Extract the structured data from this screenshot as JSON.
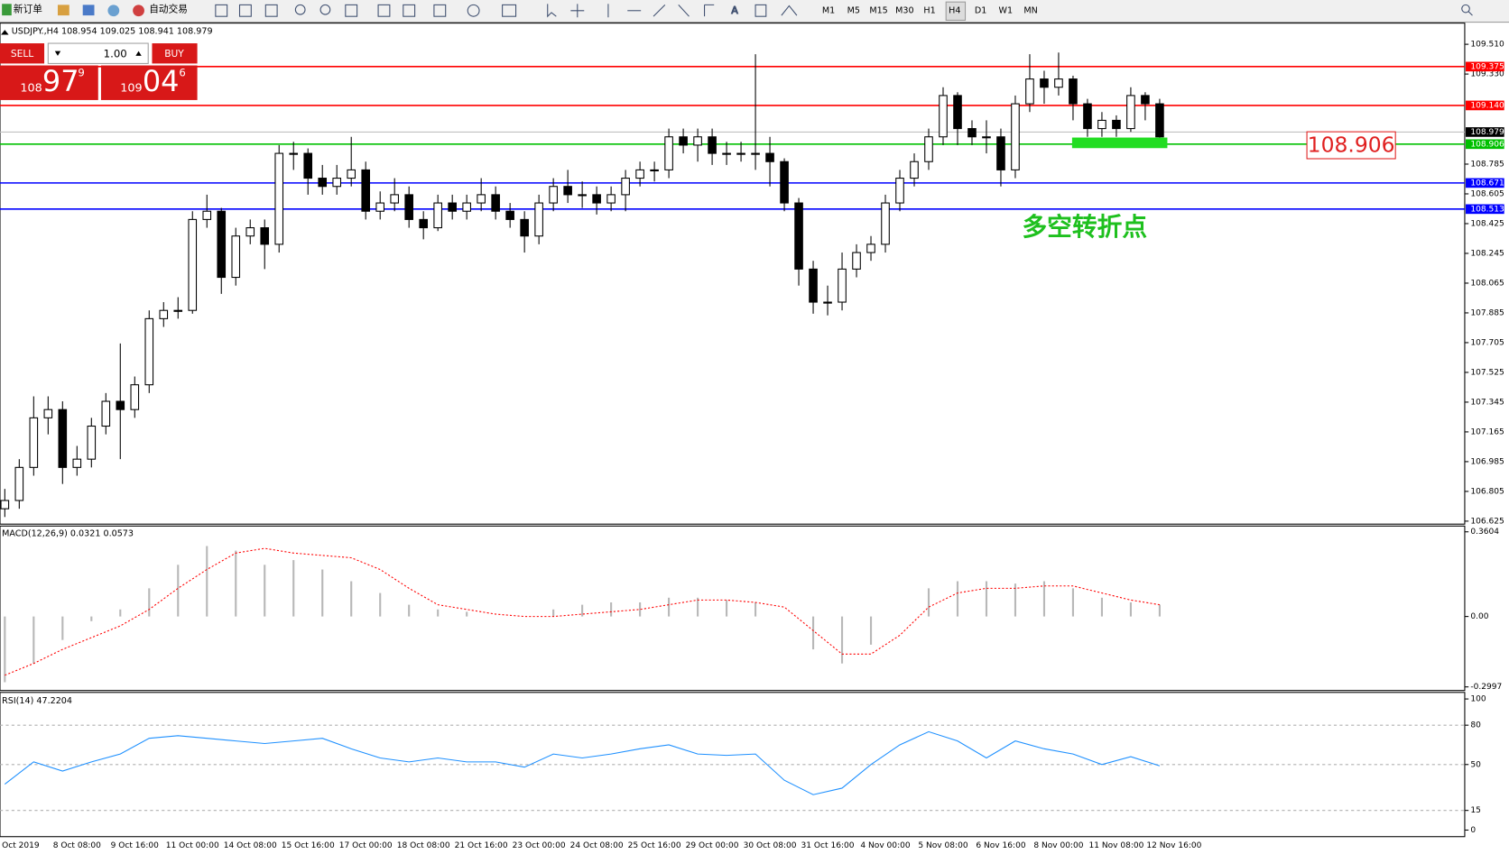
{
  "toolbar": {
    "items": [
      "新订单",
      "自动交易"
    ],
    "timeframes": [
      "M1",
      "M5",
      "M15",
      "M30",
      "H1",
      "H4",
      "D1",
      "W1",
      "MN"
    ],
    "active": "H4"
  },
  "trade_panel": {
    "sell": "SELL",
    "buy": "BUY",
    "lot": "1.00",
    "bid": [
      "108",
      "97",
      "9"
    ],
    "ask": [
      "109",
      "04",
      "6"
    ]
  },
  "chart": {
    "type": "candlestick",
    "info": "USDJPY.,H4  108.954 109.025 108.941 108.979",
    "x_labels": [
      "Oct 2019",
      "8 Oct 08:00",
      "9 Oct 16:00",
      "11 Oct 00:00",
      "14 Oct 08:00",
      "15 Oct 16:00",
      "17 Oct 00:00",
      "18 Oct 08:00",
      "21 Oct 16:00",
      "23 Oct 00:00",
      "24 Oct 08:00",
      "25 Oct 16:00",
      "29 Oct 00:00",
      "30 Oct 08:00",
      "31 Oct 16:00",
      "4 Nov 00:00",
      "5 Nov 08:00",
      "6 Nov 16:00",
      "8 Nov 00:00",
      "11 Nov 08:00",
      "12 Nov 16:00"
    ],
    "ylim": [
      106.607,
      109.638
    ],
    "yticks": [
      {
        "value": 109.51,
        "label": "109.510"
      },
      {
        "value": 109.33,
        "label": "109.330"
      },
      108.785,
      108.605,
      108.425,
      108.245,
      108.065,
      107.885,
      107.705,
      107.525,
      107.345,
      107.165,
      106.985,
      106.805,
      106.625
    ],
    "open": [
      106.7,
      106.75,
      106.95,
      107.25,
      107.3,
      106.95,
      107.0,
      107.2,
      107.35,
      107.3,
      107.45,
      107.85,
      107.9,
      107.9,
      108.45,
      108.5,
      108.1,
      108.35,
      108.4,
      108.3,
      108.85,
      108.85,
      108.7,
      108.65,
      108.7,
      108.75,
      108.5,
      108.55,
      108.6,
      108.45,
      108.4,
      108.55,
      108.5,
      108.55,
      108.6,
      108.5,
      108.45,
      108.35,
      108.55,
      108.65,
      108.6,
      108.6,
      108.55,
      108.6,
      108.7,
      108.75,
      108.75,
      108.95,
      108.9,
      108.95,
      108.85,
      108.85,
      108.85,
      108.85,
      108.8,
      108.55,
      108.15,
      107.95,
      107.95,
      108.15,
      108.25,
      108.3,
      108.55,
      108.7,
      108.8,
      108.95,
      109.2,
      109.0,
      108.95,
      108.95,
      108.75,
      109.15,
      109.3,
      109.25,
      109.3,
      109.15,
      109.0,
      109.05,
      109.0,
      109.2,
      109.15
    ],
    "high": [
      106.82,
      107.0,
      107.38,
      107.38,
      107.35,
      107.08,
      107.25,
      107.4,
      107.7,
      107.5,
      107.9,
      107.95,
      107.98,
      108.5,
      108.6,
      108.52,
      108.4,
      108.45,
      108.45,
      108.9,
      108.92,
      108.88,
      108.78,
      108.78,
      108.95,
      108.8,
      108.62,
      108.7,
      108.65,
      108.5,
      108.6,
      108.6,
      108.6,
      108.7,
      108.65,
      108.55,
      108.5,
      108.6,
      108.7,
      108.75,
      108.68,
      108.65,
      108.65,
      108.75,
      108.8,
      108.8,
      109.0,
      109.0,
      109.0,
      109.0,
      108.92,
      108.92,
      109.45,
      108.95,
      108.82,
      108.58,
      108.2,
      108.05,
      108.25,
      108.3,
      108.35,
      108.6,
      108.75,
      108.85,
      109.0,
      109.25,
      109.22,
      109.05,
      109.05,
      109.0,
      109.2,
      109.45,
      109.35,
      109.46,
      109.32,
      109.18,
      109.1,
      109.08,
      109.25,
      109.22,
      109.18
    ],
    "low": [
      106.65,
      106.7,
      106.9,
      107.15,
      106.85,
      106.9,
      106.95,
      107.15,
      107.0,
      107.25,
      107.4,
      107.8,
      107.85,
      107.88,
      108.4,
      108.0,
      108.05,
      108.3,
      108.15,
      108.25,
      108.75,
      108.6,
      108.6,
      108.6,
      108.65,
      108.45,
      108.45,
      108.5,
      108.4,
      108.33,
      108.38,
      108.45,
      108.45,
      108.5,
      108.45,
      108.4,
      108.25,
      108.3,
      108.5,
      108.55,
      108.52,
      108.48,
      108.5,
      108.5,
      108.65,
      108.68,
      108.7,
      108.85,
      108.8,
      108.78,
      108.78,
      108.8,
      108.75,
      108.65,
      108.5,
      108.05,
      107.88,
      107.87,
      107.9,
      108.1,
      108.2,
      108.25,
      108.5,
      108.65,
      108.75,
      108.9,
      108.9,
      108.9,
      108.85,
      108.65,
      108.7,
      109.1,
      109.15,
      109.2,
      109.05,
      108.95,
      108.95,
      108.95,
      108.98,
      109.05,
      108.93
    ],
    "close": [
      106.75,
      106.95,
      107.25,
      107.3,
      106.95,
      107.0,
      107.2,
      107.35,
      107.3,
      107.45,
      107.85,
      107.9,
      107.9,
      108.45,
      108.5,
      108.1,
      108.35,
      108.4,
      108.3,
      108.85,
      108.85,
      108.7,
      108.65,
      108.7,
      108.75,
      108.5,
      108.55,
      108.6,
      108.45,
      108.4,
      108.55,
      108.5,
      108.55,
      108.6,
      108.5,
      108.45,
      108.35,
      108.55,
      108.65,
      108.6,
      108.6,
      108.55,
      108.6,
      108.7,
      108.75,
      108.75,
      108.95,
      108.9,
      108.95,
      108.85,
      108.85,
      108.85,
      108.85,
      108.8,
      108.55,
      108.15,
      107.95,
      107.95,
      108.15,
      108.25,
      108.3,
      108.55,
      108.7,
      108.8,
      108.95,
      109.2,
      109.0,
      108.95,
      108.95,
      108.75,
      109.15,
      109.3,
      109.25,
      109.3,
      109.15,
      109.0,
      109.05,
      109.0,
      109.2,
      109.15,
      108.95
    ],
    "levels": [
      {
        "value": 109.375,
        "color": "#ff0000"
      },
      {
        "value": 109.14,
        "label": "109.140",
        "color": "#ff0000"
      },
      {
        "value": 108.906,
        "color": "#00c000"
      },
      {
        "value": 108.671,
        "color": "#0000ff"
      },
      {
        "value": 108.513,
        "color": "#0000ff"
      }
    ],
    "current": 108.979,
    "annotation": "多空转折点",
    "callout": "108.906"
  },
  "macd": {
    "label": "MACD(12,26,9) 0.0321 0.0573",
    "ylim": [
      -0.315,
      0.385
    ],
    "yticks": [
      0.3604,
      {
        "value": 0,
        "label": "0.00"
      },
      -0.2997
    ],
    "histogram": [
      -0.28,
      -0.2,
      -0.1,
      -0.02,
      0.03,
      0.12,
      0.22,
      0.3,
      0.28,
      0.22,
      0.24,
      0.2,
      0.15,
      0.1,
      0.05,
      0.03,
      0.02,
      0.0,
      0.0,
      0.03,
      0.05,
      0.06,
      0.06,
      0.08,
      0.08,
      0.07,
      0.06,
      0.0,
      -0.14,
      -0.2,
      -0.12,
      0.0,
      0.12,
      0.15,
      0.15,
      0.14,
      0.15,
      0.12,
      0.08,
      0.06,
      0.05
    ],
    "signal": [
      -0.25,
      -0.2,
      -0.14,
      -0.09,
      -0.04,
      0.03,
      0.12,
      0.2,
      0.27,
      0.29,
      0.27,
      0.26,
      0.25,
      0.2,
      0.12,
      0.05,
      0.03,
      0.01,
      0.0,
      0.0,
      0.01,
      0.02,
      0.03,
      0.05,
      0.07,
      0.07,
      0.06,
      0.04,
      -0.06,
      -0.16,
      -0.16,
      -0.08,
      0.04,
      0.1,
      0.12,
      0.12,
      0.13,
      0.13,
      0.1,
      0.07,
      0.05
    ]
  },
  "rsi": {
    "label": "RSI(14) 47.2204",
    "ylim": [
      -5,
      105
    ],
    "yticks": [
      100,
      80,
      50,
      15,
      0
    ],
    "values": [
      35,
      52,
      45,
      52,
      58,
      70,
      72,
      70,
      68,
      66,
      68,
      70,
      62,
      55,
      52,
      55,
      52,
      52,
      48,
      58,
      55,
      58,
      62,
      65,
      58,
      57,
      58,
      38,
      27,
      32,
      50,
      65,
      75,
      68,
      55,
      68,
      62,
      58,
      50,
      56,
      49
    ]
  }
}
